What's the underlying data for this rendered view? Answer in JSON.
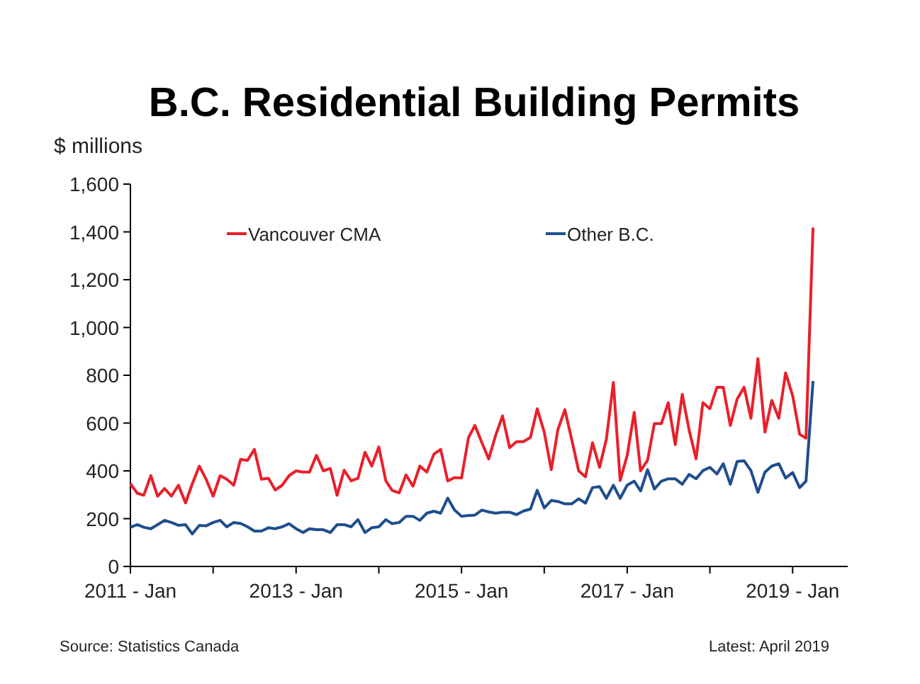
{
  "chart_data": {
    "type": "line",
    "title": "B.C. Residential Building Permits",
    "ylabel": "$ millions",
    "x": [
      "2011-01",
      "2011-02",
      "2011-03",
      "2011-04",
      "2011-05",
      "2011-06",
      "2011-07",
      "2011-08",
      "2011-09",
      "2011-10",
      "2011-11",
      "2011-12",
      "2012-01",
      "2012-02",
      "2012-03",
      "2012-04",
      "2012-05",
      "2012-06",
      "2012-07",
      "2012-08",
      "2012-09",
      "2012-10",
      "2012-11",
      "2012-12",
      "2013-01",
      "2013-02",
      "2013-03",
      "2013-04",
      "2013-05",
      "2013-06",
      "2013-07",
      "2013-08",
      "2013-09",
      "2013-10",
      "2013-11",
      "2013-12",
      "2014-01",
      "2014-02",
      "2014-03",
      "2014-04",
      "2014-05",
      "2014-06",
      "2014-07",
      "2014-08",
      "2014-09",
      "2014-10",
      "2014-11",
      "2014-12",
      "2015-01",
      "2015-02",
      "2015-03",
      "2015-04",
      "2015-05",
      "2015-06",
      "2015-07",
      "2015-08",
      "2015-09",
      "2015-10",
      "2015-11",
      "2015-12",
      "2016-01",
      "2016-02",
      "2016-03",
      "2016-04",
      "2016-05",
      "2016-06",
      "2016-07",
      "2016-08",
      "2016-09",
      "2016-10",
      "2016-11",
      "2016-12",
      "2017-01",
      "2017-02",
      "2017-03",
      "2017-04",
      "2017-05",
      "2017-06",
      "2017-07",
      "2017-08",
      "2017-09",
      "2017-10",
      "2017-11",
      "2017-12",
      "2018-01",
      "2018-02",
      "2018-03",
      "2018-04",
      "2018-05",
      "2018-06",
      "2018-07",
      "2018-08",
      "2018-09",
      "2018-10",
      "2018-11",
      "2018-12",
      "2019-01",
      "2019-02",
      "2019-03",
      "2019-04"
    ],
    "series": [
      {
        "name": "Vancouver CMA",
        "color": "#e8202a",
        "values": [
          346,
          306,
          298,
          380,
          294,
          326,
          294,
          340,
          266,
          346,
          420,
          365,
          294,
          380,
          365,
          340,
          448,
          444,
          490,
          365,
          369,
          320,
          340,
          380,
          400,
          395,
          395,
          465,
          400,
          410,
          298,
          403,
          358,
          369,
          478,
          420,
          500,
          358,
          318,
          308,
          383,
          336,
          420,
          395,
          470,
          490,
          358,
          372,
          370,
          540,
          590,
          518,
          450,
          550,
          630,
          497,
          522,
          522,
          540,
          660,
          562,
          405,
          572,
          656,
          532,
          400,
          375,
          518,
          415,
          532,
          770,
          360,
          465,
          645,
          400,
          445,
          598,
          598,
          685,
          510,
          720,
          572,
          450,
          685,
          660,
          750,
          750,
          590,
          700,
          750,
          620,
          870,
          562,
          695,
          620,
          810,
          715,
          553,
          537,
          1418
        ]
      },
      {
        "name": "Other B.C.",
        "color": "#1f4e8c",
        "values": [
          164,
          175,
          164,
          158,
          175,
          193,
          184,
          172,
          175,
          136,
          172,
          170,
          184,
          193,
          166,
          184,
          180,
          166,
          148,
          148,
          162,
          158,
          166,
          179,
          158,
          142,
          158,
          154,
          154,
          142,
          175,
          175,
          166,
          196,
          142,
          162,
          166,
          196,
          179,
          184,
          210,
          210,
          193,
          223,
          231,
          223,
          286,
          236,
          210,
          213,
          215,
          236,
          228,
          223,
          227,
          227,
          217,
          232,
          240,
          319,
          245,
          276,
          272,
          262,
          262,
          283,
          265,
          330,
          334,
          285,
          340,
          285,
          340,
          357,
          316,
          405,
          324,
          357,
          367,
          367,
          344,
          385,
          367,
          401,
          415,
          387,
          430,
          344,
          439,
          442,
          401,
          310,
          395,
          420,
          430,
          370,
          393,
          330,
          357,
          776
        ]
      }
    ],
    "xlim": [
      "2011-01",
      "2019-09"
    ],
    "xticks": [
      {
        "value": "2011-01",
        "label": "2011 - Jan"
      },
      {
        "value": "2012-01",
        "label": null
      },
      {
        "value": "2013-01",
        "label": "2013 - Jan"
      },
      {
        "value": "2014-01",
        "label": null
      },
      {
        "value": "2015-01",
        "label": "2015 - Jan"
      },
      {
        "value": "2016-01",
        "label": null
      },
      {
        "value": "2017-01",
        "label": "2017 - Jan"
      },
      {
        "value": "2018-01",
        "label": null
      },
      {
        "value": "2019-01",
        "label": "2019 - Jan"
      }
    ],
    "ylim": [
      0,
      1600
    ],
    "yticks": [
      0,
      200,
      400,
      600,
      800,
      {
        "value": 1000,
        "label": "1,000"
      },
      {
        "value": 1200,
        "label": "1,200"
      },
      {
        "value": 1400,
        "label": "1,400"
      },
      {
        "value": 1600,
        "label": "1,600"
      }
    ],
    "grid": false,
    "legend": "top",
    "marker": "none",
    "line_style": "solid",
    "annotations": [
      "Source: Statistics Canada",
      "Latest: April 2019"
    ]
  }
}
